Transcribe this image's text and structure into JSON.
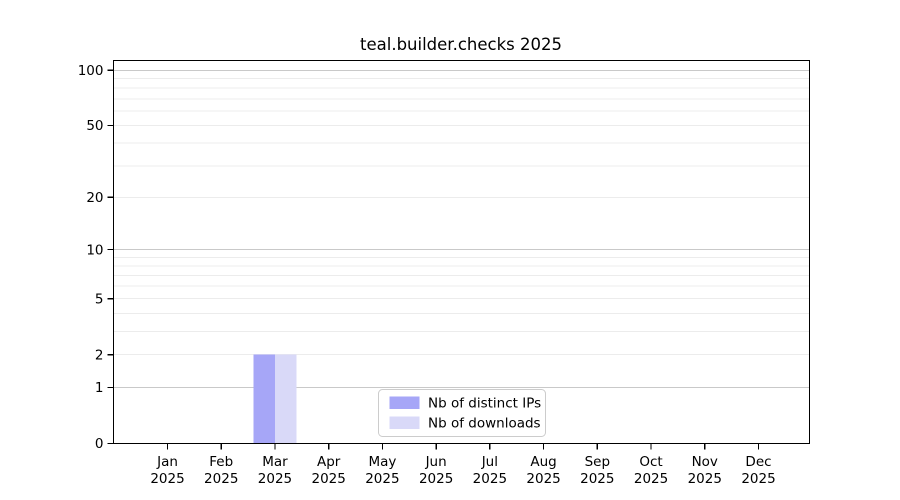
{
  "chart_data": {
    "type": "bar",
    "title": "teal.builder.checks 2025",
    "categories": [
      {
        "month": "Jan",
        "year": "2025"
      },
      {
        "month": "Feb",
        "year": "2025"
      },
      {
        "month": "Mar",
        "year": "2025"
      },
      {
        "month": "Apr",
        "year": "2025"
      },
      {
        "month": "May",
        "year": "2025"
      },
      {
        "month": "Jun",
        "year": "2025"
      },
      {
        "month": "Jul",
        "year": "2025"
      },
      {
        "month": "Aug",
        "year": "2025"
      },
      {
        "month": "Sep",
        "year": "2025"
      },
      {
        "month": "Oct",
        "year": "2025"
      },
      {
        "month": "Nov",
        "year": "2025"
      },
      {
        "month": "Dec",
        "year": "2025"
      }
    ],
    "series": [
      {
        "name": "Nb of distinct IPs",
        "color": "#a6a6f7",
        "values": [
          0,
          0,
          2,
          0,
          0,
          0,
          0,
          0,
          0,
          0,
          0,
          0
        ]
      },
      {
        "name": "Nb of downloads",
        "color": "#d9d9f8",
        "values": [
          0,
          0,
          2,
          0,
          0,
          0,
          0,
          0,
          0,
          0,
          0,
          0
        ]
      }
    ],
    "yscale": "log1p",
    "ylim": [
      0,
      113
    ],
    "yticks": [
      0,
      1,
      2,
      5,
      10,
      20,
      50,
      100
    ],
    "grid_decade": [
      1,
      10,
      100
    ],
    "grid_minor": [
      2,
      3,
      4,
      5,
      6,
      7,
      8,
      9,
      20,
      30,
      40,
      50,
      60,
      70,
      80,
      90
    ],
    "grid": "horizontal",
    "legend_position": "lower center inside",
    "colors": {
      "grid_decade": "#c9c9c9",
      "grid_minor": "#ececec",
      "axis": "#000000",
      "legend_border": "#cccccc",
      "background": "#ffffff"
    }
  }
}
